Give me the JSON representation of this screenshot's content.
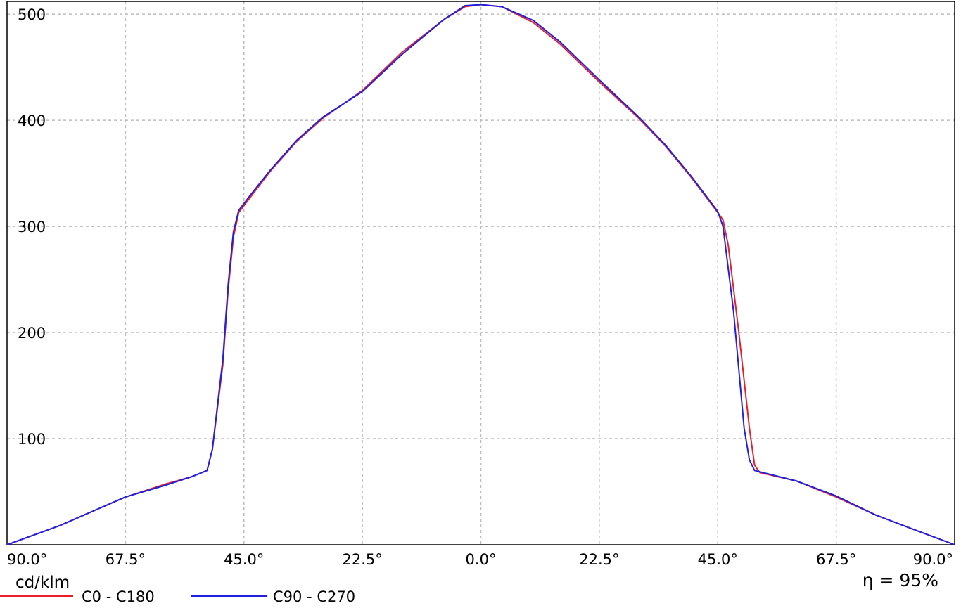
{
  "chart_data": {
    "type": "line",
    "x_tick_labels": [
      "90.0°",
      "67.5°",
      "45.0°",
      "22.5°",
      "0.0°",
      "22.5°",
      "45.0°",
      "67.5°",
      "90.0°"
    ],
    "x_tick_values": [
      -90,
      -67.5,
      -45,
      -22.5,
      0,
      22.5,
      45,
      67.5,
      90
    ],
    "xlim": [
      -90,
      90
    ],
    "y_tick_labels": [
      "100",
      "200",
      "300",
      "400",
      "500"
    ],
    "y_tick_values": [
      100,
      200,
      300,
      400,
      500
    ],
    "ylim": [
      0,
      512
    ],
    "ylabel": "cd/klm",
    "efficiency": "η = 95%",
    "grid": true,
    "legend_position": "bottom-left",
    "series": [
      {
        "name": "C0 - C180",
        "color": "#e8202a",
        "points": [
          [
            -90,
            0
          ],
          [
            -80,
            18
          ],
          [
            -67.5,
            45
          ],
          [
            -60,
            57
          ],
          [
            -55,
            64
          ],
          [
            -52,
            70
          ],
          [
            -51,
            90
          ],
          [
            -49,
            170
          ],
          [
            -48,
            240
          ],
          [
            -47,
            290
          ],
          [
            -46,
            313
          ],
          [
            -44,
            326
          ],
          [
            -40,
            352
          ],
          [
            -35,
            380
          ],
          [
            -30,
            402
          ],
          [
            -22.5,
            428
          ],
          [
            -15,
            464
          ],
          [
            -7,
            495
          ],
          [
            -3,
            507
          ],
          [
            0,
            509
          ],
          [
            4,
            507
          ],
          [
            10,
            492
          ],
          [
            15,
            472
          ],
          [
            22.5,
            436
          ],
          [
            30,
            402
          ],
          [
            35,
            376
          ],
          [
            40,
            346
          ],
          [
            45,
            313
          ],
          [
            46,
            306
          ],
          [
            47,
            282
          ],
          [
            49,
            200
          ],
          [
            51,
            110
          ],
          [
            52,
            75
          ],
          [
            53,
            68
          ],
          [
            60,
            60
          ],
          [
            67.5,
            45
          ],
          [
            75,
            28
          ],
          [
            83,
            13
          ],
          [
            90,
            0
          ]
        ]
      },
      {
        "name": "C90 - C270",
        "color": "#2020e0",
        "points": [
          [
            -90,
            0
          ],
          [
            -80,
            18
          ],
          [
            -67.5,
            45
          ],
          [
            -60,
            56
          ],
          [
            -55,
            64
          ],
          [
            -52,
            70
          ],
          [
            -51,
            90
          ],
          [
            -49,
            175
          ],
          [
            -48,
            245
          ],
          [
            -47,
            295
          ],
          [
            -46,
            315
          ],
          [
            -44,
            328
          ],
          [
            -40,
            353
          ],
          [
            -35,
            381
          ],
          [
            -30,
            403
          ],
          [
            -22.5,
            427
          ],
          [
            -15,
            462
          ],
          [
            -7,
            495
          ],
          [
            -3,
            508
          ],
          [
            0,
            509
          ],
          [
            4,
            507
          ],
          [
            10,
            494
          ],
          [
            15,
            474
          ],
          [
            22.5,
            438
          ],
          [
            30,
            403
          ],
          [
            35,
            377
          ],
          [
            40,
            347
          ],
          [
            45,
            314
          ],
          [
            46,
            300
          ],
          [
            48,
            220
          ],
          [
            50,
            110
          ],
          [
            51,
            80
          ],
          [
            52,
            70
          ],
          [
            60,
            60
          ],
          [
            67.5,
            46
          ],
          [
            75,
            28
          ],
          [
            83,
            13
          ],
          [
            90,
            0
          ]
        ]
      }
    ]
  }
}
